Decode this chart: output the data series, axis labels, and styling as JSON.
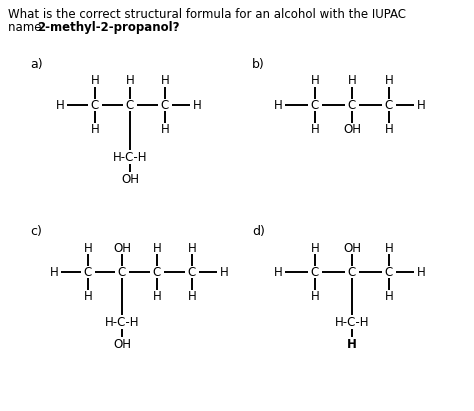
{
  "background_color": "#ffffff",
  "text_color": "#000000",
  "title1": "What is the correct structural formula for an alcohol with the IUPAC",
  "title2_normal": "name ",
  "title2_bold": "2-methyl-2-propanol?",
  "fs": 8.5,
  "fs_title": 8.5,
  "lw": 1.4
}
